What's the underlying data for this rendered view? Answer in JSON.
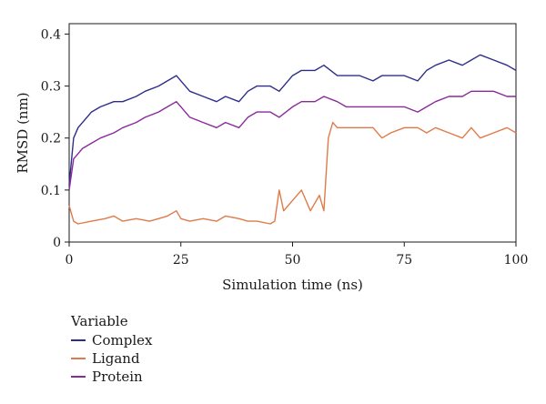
{
  "chart_data": {
    "type": "line",
    "xlabel": "Simulation time (ns)",
    "ylabel": "RMSD (nm)",
    "xlim": [
      0,
      100
    ],
    "ylim": [
      0,
      0.42
    ],
    "xticks": [
      0,
      25,
      50,
      75,
      100
    ],
    "yticks": [
      0,
      0.1,
      0.2,
      0.3,
      0.4
    ],
    "xtick_labels": [
      "0",
      "25",
      "50",
      "75",
      "100"
    ],
    "ytick_labels": [
      "0",
      "0.1",
      "0.2",
      "0.3",
      "0.4"
    ],
    "grid": false,
    "legend": {
      "title": "Variable",
      "position": "bottom-left"
    },
    "series": [
      {
        "name": "Complex",
        "color": "#2e2e8a",
        "x": [
          0,
          1,
          2,
          3,
          5,
          7,
          10,
          12,
          15,
          17,
          20,
          22,
          24,
          25,
          27,
          30,
          33,
          35,
          38,
          40,
          42,
          45,
          47,
          50,
          52,
          55,
          57,
          60,
          62,
          65,
          68,
          70,
          72,
          75,
          78,
          80,
          82,
          85,
          88,
          90,
          92,
          95,
          98,
          100
        ],
        "y": [
          0.11,
          0.2,
          0.22,
          0.23,
          0.25,
          0.26,
          0.27,
          0.27,
          0.28,
          0.29,
          0.3,
          0.31,
          0.32,
          0.31,
          0.29,
          0.28,
          0.27,
          0.28,
          0.27,
          0.29,
          0.3,
          0.3,
          0.29,
          0.32,
          0.33,
          0.33,
          0.34,
          0.32,
          0.32,
          0.32,
          0.31,
          0.32,
          0.32,
          0.32,
          0.31,
          0.33,
          0.34,
          0.35,
          0.34,
          0.35,
          0.36,
          0.35,
          0.34,
          0.33
        ]
      },
      {
        "name": "Ligand",
        "color": "#e07a4a",
        "x": [
          0,
          1,
          2,
          5,
          8,
          10,
          12,
          15,
          18,
          20,
          22,
          24,
          25,
          27,
          30,
          33,
          35,
          38,
          40,
          42,
          45,
          46,
          47,
          48,
          50,
          52,
          54,
          56,
          57,
          58,
          59,
          60,
          62,
          65,
          68,
          70,
          72,
          75,
          78,
          80,
          82,
          85,
          88,
          90,
          92,
          95,
          98,
          100
        ],
        "y": [
          0.07,
          0.04,
          0.035,
          0.04,
          0.045,
          0.05,
          0.04,
          0.045,
          0.04,
          0.045,
          0.05,
          0.06,
          0.045,
          0.04,
          0.045,
          0.04,
          0.05,
          0.045,
          0.04,
          0.04,
          0.035,
          0.04,
          0.1,
          0.06,
          0.08,
          0.1,
          0.06,
          0.09,
          0.06,
          0.2,
          0.23,
          0.22,
          0.22,
          0.22,
          0.22,
          0.2,
          0.21,
          0.22,
          0.22,
          0.21,
          0.22,
          0.21,
          0.2,
          0.22,
          0.2,
          0.21,
          0.22,
          0.21
        ]
      },
      {
        "name": "Protein",
        "color": "#8a2a9a",
        "x": [
          0,
          1,
          2,
          3,
          5,
          7,
          10,
          12,
          15,
          17,
          20,
          22,
          24,
          25,
          27,
          30,
          33,
          35,
          38,
          40,
          42,
          45,
          47,
          50,
          52,
          55,
          57,
          60,
          62,
          65,
          68,
          70,
          72,
          75,
          78,
          80,
          82,
          85,
          88,
          90,
          92,
          95,
          98,
          100
        ],
        "y": [
          0.1,
          0.16,
          0.17,
          0.18,
          0.19,
          0.2,
          0.21,
          0.22,
          0.23,
          0.24,
          0.25,
          0.26,
          0.27,
          0.26,
          0.24,
          0.23,
          0.22,
          0.23,
          0.22,
          0.24,
          0.25,
          0.25,
          0.24,
          0.26,
          0.27,
          0.27,
          0.28,
          0.27,
          0.26,
          0.26,
          0.26,
          0.26,
          0.26,
          0.26,
          0.25,
          0.26,
          0.27,
          0.28,
          0.28,
          0.29,
          0.29,
          0.29,
          0.28,
          0.28
        ]
      }
    ]
  }
}
